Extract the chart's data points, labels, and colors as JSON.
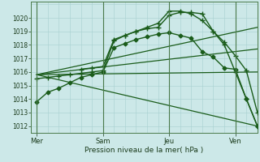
{
  "xlabel": "Pression niveau de la mer( hPa )",
  "bg_color": "#cce8e8",
  "grid_color": "#a8d0d0",
  "line_color": "#1a5c1a",
  "vline_color": "#4a7a4a",
  "ylim": [
    1011.5,
    1021.2
  ],
  "yticks": [
    1012,
    1013,
    1014,
    1015,
    1016,
    1017,
    1018,
    1019,
    1020
  ],
  "xtick_labels": [
    "Mer",
    "Sam",
    "Jeu",
    "Ven"
  ],
  "xtick_positions": [
    0,
    36,
    72,
    108
  ],
  "vline_positions": [
    0,
    36,
    72,
    108
  ],
  "xlim": [
    -3,
    120
  ],
  "origin_x": 0,
  "origin_y": 1015.8,
  "lines_with_markers": [
    {
      "x": [
        0,
        6,
        12,
        18,
        24,
        30,
        36,
        42,
        48,
        54,
        60,
        66,
        72,
        78,
        84,
        90,
        96,
        102,
        108,
        114,
        120
      ],
      "y": [
        1013.8,
        1014.5,
        1014.8,
        1015.2,
        1015.6,
        1015.8,
        1016.0,
        1017.8,
        1018.1,
        1018.4,
        1018.6,
        1018.8,
        1018.9,
        1018.7,
        1018.5,
        1017.5,
        1017.1,
        1016.3,
        1016.2,
        1014.0,
        1012.0
      ],
      "marker": "D",
      "markersize": 2.5,
      "lw": 1.0
    },
    {
      "x": [
        0,
        6,
        12,
        18,
        24,
        30,
        36,
        42,
        48,
        54,
        60,
        66,
        72,
        78,
        84,
        90,
        96,
        102,
        108,
        114,
        120
      ],
      "y": [
        1015.5,
        1015.6,
        1015.7,
        1015.8,
        1015.9,
        1016.0,
        1016.1,
        1018.3,
        1018.7,
        1019.0,
        1019.2,
        1019.3,
        1020.2,
        1020.4,
        1020.4,
        1020.3,
        1019.0,
        1018.2,
        1017.2,
        1016.1,
        1013.0
      ],
      "marker": "+",
      "markersize": 4,
      "lw": 1.0
    },
    {
      "x": [
        24,
        30,
        36,
        42,
        48,
        54,
        60,
        66,
        72,
        78,
        84,
        90,
        96,
        102,
        108,
        114,
        120
      ],
      "y": [
        1016.2,
        1016.3,
        1016.4,
        1018.4,
        1018.7,
        1019.0,
        1019.3,
        1019.6,
        1020.5,
        1020.5,
        1020.3,
        1019.8,
        1019.0,
        1018.0,
        1016.0,
        1014.0,
        1012.0
      ],
      "marker": "+",
      "markersize": 4,
      "lw": 1.0
    }
  ],
  "fan_lines": [
    {
      "x": [
        0,
        120
      ],
      "y": [
        1015.8,
        1019.3
      ]
    },
    {
      "x": [
        0,
        120
      ],
      "y": [
        1015.8,
        1017.7
      ]
    },
    {
      "x": [
        0,
        120
      ],
      "y": [
        1015.8,
        1016.0
      ]
    },
    {
      "x": [
        0,
        120
      ],
      "y": [
        1015.8,
        1012.0
      ]
    }
  ]
}
